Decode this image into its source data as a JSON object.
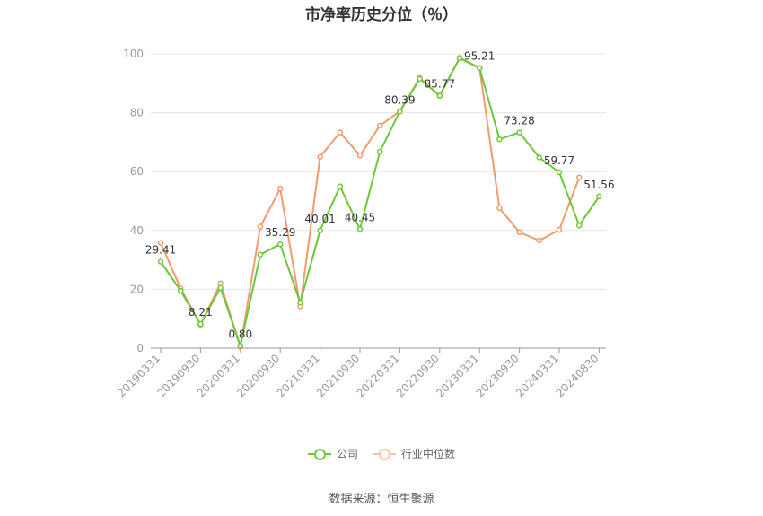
{
  "title": "市净率历史分位（％）",
  "source": "数据来源：恒生聚源",
  "colors": {
    "company": "#6cc83a",
    "industry": "#f39a6c",
    "grid": "#e6e6e6",
    "axis": "#999999"
  },
  "legend": {
    "company": "公司",
    "industry": "行业中位数"
  },
  "chart_data": {
    "type": "line",
    "title": "市净率历史分位（％）",
    "ylim": [
      0,
      100
    ],
    "yticks": [
      0,
      20,
      40,
      60,
      80,
      100
    ],
    "grid": true,
    "legend_position": "bottom",
    "x": [
      "20190331",
      "20190630",
      "20190930",
      "20191231",
      "20200331",
      "20200630",
      "20200930",
      "20201231",
      "20210331",
      "20210630",
      "20210930",
      "20211231",
      "20220331",
      "20220630",
      "20220930",
      "20221231",
      "20230331",
      "20230630",
      "20230930",
      "20231231",
      "20240331",
      "20240630",
      "20240830"
    ],
    "xtick_labels": [
      "20190331",
      "20190930",
      "20200331",
      "20200930",
      "20210331",
      "20210930",
      "20220331",
      "20220930",
      "20230331",
      "20230930",
      "20240331",
      "20240830"
    ],
    "series": [
      {
        "name": "公司",
        "values": [
          29.41,
          19.5,
          8.21,
          20.5,
          0.8,
          31.8,
          35.29,
          15.5,
          40.01,
          55.0,
          40.45,
          66.8,
          80.39,
          91.5,
          85.77,
          98.5,
          95.21,
          71.0,
          73.28,
          64.8,
          59.77,
          41.7,
          51.56
        ]
      },
      {
        "name": "行业中位数",
        "values": [
          35.8,
          20.3,
          8.0,
          22.0,
          0.4,
          41.3,
          54.2,
          14.2,
          65.0,
          73.3,
          65.5,
          75.6,
          80.5,
          91.8,
          85.8,
          98.7,
          95.2,
          47.6,
          39.4,
          36.6,
          40.2,
          58.0,
          null
        ]
      }
    ],
    "data_labels": [
      {
        "series": 0,
        "index": 0,
        "text": "29.41"
      },
      {
        "series": 0,
        "index": 2,
        "text": "8.21"
      },
      {
        "series": 0,
        "index": 4,
        "text": "0.80"
      },
      {
        "series": 0,
        "index": 6,
        "text": "35.29"
      },
      {
        "series": 0,
        "index": 8,
        "text": "40.01"
      },
      {
        "series": 0,
        "index": 10,
        "text": "40.45"
      },
      {
        "series": 0,
        "index": 12,
        "text": "80.39"
      },
      {
        "series": 0,
        "index": 14,
        "text": "85.77"
      },
      {
        "series": 0,
        "index": 16,
        "text": "95.21"
      },
      {
        "series": 0,
        "index": 18,
        "text": "73.28"
      },
      {
        "series": 0,
        "index": 20,
        "text": "59.77"
      },
      {
        "series": 0,
        "index": 22,
        "text": "51.56"
      }
    ]
  }
}
